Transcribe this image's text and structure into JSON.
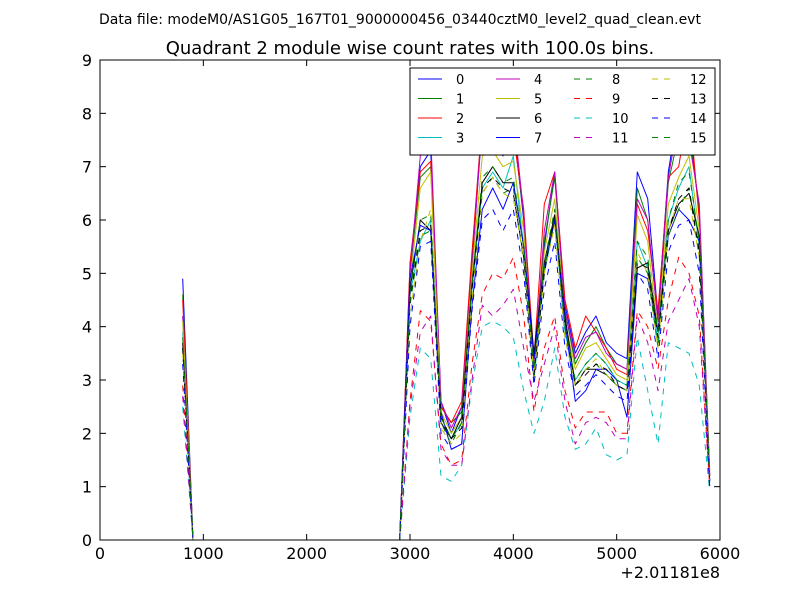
{
  "figure": {
    "suptitle": "Data file: modeM0/AS1G05_167T01_9000000456_03440cztM0_level2_quad_clean.evt"
  },
  "chart_data": {
    "type": "line",
    "title": "Quadrant 2 module wise count rates with 100.0s bins.",
    "xlabel": "",
    "ylabel": "",
    "x_offset_label": "+2.01181e8",
    "xlim": [
      0,
      6000
    ],
    "ylim": [
      0,
      9
    ],
    "xticks": [
      0,
      1000,
      2000,
      3000,
      4000,
      5000,
      6000
    ],
    "yticks": [
      0,
      1,
      2,
      3,
      4,
      5,
      6,
      7,
      8,
      9
    ],
    "grid": false,
    "legend_position": "upper right",
    "legend_columns": 4,
    "x": [
      800,
      900,
      1000,
      1100,
      1200,
      1300,
      1400,
      1500,
      1600,
      1700,
      1800,
      1900,
      2000,
      2100,
      2200,
      2300,
      2400,
      2500,
      2600,
      2700,
      2800,
      2900,
      3000,
      3100,
      3200,
      3300,
      3400,
      3500,
      3600,
      3700,
      3800,
      3900,
      4000,
      4100,
      4200,
      4300,
      4400,
      4500,
      4600,
      4700,
      4800,
      4900,
      5000,
      5100,
      5200,
      5300,
      5400,
      5500,
      5600,
      5700,
      5800,
      5900
    ],
    "series": [
      {
        "name": "0",
        "color": "#0000ff",
        "dash": "solid",
        "values": [
          4.9,
          0.0,
          0,
          0,
          0,
          0,
          0,
          0,
          0,
          0,
          0,
          0,
          0,
          0,
          0,
          0,
          0,
          0,
          0,
          0,
          0,
          0,
          5.1,
          7.0,
          7.3,
          2.6,
          2.0,
          2.5,
          5.2,
          7.8,
          7.8,
          7.2,
          7.8,
          6.0,
          3.0,
          5.5,
          6.9,
          4.4,
          3.5,
          3.9,
          4.2,
          3.7,
          3.5,
          3.4,
          6.9,
          6.4,
          4.2,
          6.9,
          8.1,
          7.9,
          6.1,
          1.1
        ]
      },
      {
        "name": "1",
        "color": "#008000",
        "dash": "solid",
        "values": [
          4.6,
          0.0,
          0,
          0,
          0,
          0,
          0,
          0,
          0,
          0,
          0,
          0,
          0,
          0,
          0,
          0,
          0,
          0,
          0,
          0,
          0,
          0,
          5.0,
          6.8,
          7.0,
          2.5,
          2.2,
          2.4,
          5.3,
          7.9,
          8.6,
          7.6,
          7.7,
          6.1,
          3.2,
          5.6,
          6.8,
          4.3,
          3.3,
          3.7,
          4.0,
          3.6,
          3.3,
          3.2,
          6.6,
          6.0,
          4.1,
          6.7,
          7.6,
          7.7,
          6.2,
          1.3
        ]
      },
      {
        "name": "2",
        "color": "#ff0000",
        "dash": "solid",
        "values": [
          4.5,
          0.0,
          0,
          0,
          0,
          0,
          0,
          0,
          0,
          0,
          0,
          0,
          0,
          0,
          0,
          0,
          0,
          0,
          0,
          0,
          0,
          0,
          5.2,
          6.9,
          7.1,
          2.5,
          2.2,
          2.6,
          5.4,
          7.9,
          8.0,
          7.8,
          7.6,
          6.2,
          3.4,
          6.3,
          6.9,
          4.5,
          3.6,
          4.2,
          3.9,
          3.6,
          3.2,
          3.1,
          6.3,
          5.8,
          4.3,
          6.8,
          7.0,
          8.2,
          6.0,
          1.2
        ]
      },
      {
        "name": "3",
        "color": "#00bfbf",
        "dash": "solid",
        "values": [
          3.9,
          0.0,
          0,
          0,
          0,
          0,
          0,
          0,
          0,
          0,
          0,
          0,
          0,
          0,
          0,
          0,
          0,
          0,
          0,
          0,
          0,
          0,
          4.6,
          5.6,
          6.0,
          2.3,
          1.9,
          2.2,
          4.7,
          6.6,
          6.9,
          6.6,
          7.2,
          5.5,
          3.0,
          5.0,
          6.0,
          3.9,
          3.0,
          3.3,
          3.5,
          3.3,
          3.0,
          2.9,
          5.6,
          5.1,
          3.7,
          6.0,
          6.6,
          7.0,
          5.5,
          1.1
        ]
      },
      {
        "name": "4",
        "color": "#bf00bf",
        "dash": "solid",
        "values": [
          4.2,
          0.0,
          0,
          0,
          0,
          0,
          0,
          0,
          0,
          0,
          0,
          0,
          0,
          0,
          0,
          0,
          0,
          0,
          0,
          0,
          0,
          0,
          5.0,
          7.2,
          7.6,
          2.6,
          2.1,
          2.5,
          5.1,
          7.9,
          8.1,
          7.8,
          8.0,
          6.1,
          3.2,
          5.8,
          6.9,
          4.3,
          3.4,
          3.8,
          3.9,
          3.5,
          3.3,
          3.2,
          6.4,
          6.0,
          4.1,
          6.8,
          7.9,
          7.5,
          6.3,
          1.2
        ]
      },
      {
        "name": "5",
        "color": "#bfbf00",
        "dash": "solid",
        "values": [
          4.1,
          0.0,
          0,
          0,
          0,
          0,
          0,
          0,
          0,
          0,
          0,
          0,
          0,
          0,
          0,
          0,
          0,
          0,
          0,
          0,
          0,
          0,
          4.8,
          6.6,
          6.9,
          2.4,
          2.0,
          2.3,
          5.0,
          7.2,
          7.3,
          7.0,
          7.1,
          5.8,
          3.1,
          5.4,
          6.4,
          4.1,
          3.2,
          3.6,
          3.7,
          3.4,
          3.1,
          3.0,
          6.1,
          5.6,
          3.9,
          6.3,
          6.8,
          7.2,
          5.8,
          1.2
        ]
      },
      {
        "name": "6",
        "color": "#000000",
        "dash": "solid",
        "values": [
          3.7,
          0.0,
          0,
          0,
          0,
          0,
          0,
          0,
          0,
          0,
          0,
          0,
          0,
          0,
          0,
          0,
          0,
          0,
          0,
          0,
          0,
          0,
          4.7,
          6.0,
          5.8,
          2.2,
          1.9,
          2.3,
          4.8,
          6.7,
          7.0,
          6.7,
          6.7,
          5.5,
          3.5,
          5.2,
          6.1,
          4.2,
          2.9,
          3.2,
          3.2,
          3.1,
          2.9,
          2.8,
          5.1,
          5.2,
          3.9,
          5.8,
          6.3,
          6.5,
          5.7,
          1.1
        ]
      },
      {
        "name": "7",
        "color": "#0000ff",
        "dash": "solid",
        "values": [
          3.6,
          0.0,
          0,
          0,
          0,
          0,
          0,
          0,
          0,
          0,
          0,
          0,
          0,
          0,
          0,
          0,
          0,
          0,
          0,
          0,
          0,
          0,
          4.9,
          5.9,
          5.8,
          2.4,
          1.7,
          1.8,
          4.4,
          6.2,
          6.6,
          6.2,
          6.7,
          5.5,
          3.4,
          5.1,
          6.0,
          4.1,
          2.6,
          2.8,
          3.2,
          3.2,
          3.0,
          2.3,
          5.0,
          4.9,
          3.9,
          5.7,
          6.2,
          6.0,
          5.6,
          1.1
        ]
      },
      {
        "name": "8",
        "color": "#008000",
        "dash": "dashed",
        "values": [
          3.6,
          0.0,
          0,
          0,
          0,
          0,
          0,
          0,
          0,
          0,
          0,
          0,
          0,
          0,
          0,
          0,
          0,
          0,
          0,
          0,
          0,
          0,
          4.4,
          5.7,
          5.8,
          2.2,
          1.8,
          2.2,
          4.7,
          6.5,
          6.8,
          6.5,
          6.6,
          5.2,
          3.0,
          5.1,
          5.9,
          3.8,
          2.9,
          3.2,
          3.3,
          3.1,
          2.9,
          2.8,
          5.3,
          5.0,
          3.6,
          5.7,
          6.2,
          6.6,
          5.3,
          1.1
        ]
      },
      {
        "name": "9",
        "color": "#ff0000",
        "dash": "dashed",
        "values": [
          2.9,
          0.0,
          0,
          0,
          0,
          0,
          0,
          0,
          0,
          0,
          0,
          0,
          0,
          0,
          0,
          0,
          0,
          0,
          0,
          0,
          0,
          0,
          2.6,
          4.3,
          4.1,
          1.8,
          1.4,
          1.5,
          3.3,
          4.6,
          5.0,
          4.9,
          5.3,
          4.2,
          2.4,
          3.6,
          4.2,
          2.8,
          2.1,
          2.4,
          2.4,
          2.4,
          2.0,
          2.0,
          4.3,
          4.0,
          3.2,
          4.5,
          5.3,
          5.0,
          4.2,
          1.0
        ]
      },
      {
        "name": "10",
        "color": "#00bfbf",
        "dash": "dashed",
        "values": [
          2.5,
          0.0,
          0,
          0,
          0,
          0,
          0,
          0,
          0,
          0,
          0,
          0,
          0,
          0,
          0,
          0,
          0,
          0,
          0,
          0,
          0,
          0,
          2.3,
          3.6,
          3.4,
          1.2,
          1.1,
          1.4,
          2.9,
          4.0,
          4.1,
          4.0,
          3.8,
          2.8,
          2.0,
          2.6,
          3.6,
          2.3,
          1.7,
          1.8,
          2.1,
          1.6,
          1.5,
          1.6,
          3.8,
          2.8,
          1.8,
          3.7,
          3.6,
          3.5,
          2.9,
          0.9
        ]
      },
      {
        "name": "11",
        "color": "#bf00bf",
        "dash": "dashed",
        "values": [
          2.7,
          0.0,
          0,
          0,
          0,
          0,
          0,
          0,
          0,
          0,
          0,
          0,
          0,
          0,
          0,
          0,
          0,
          0,
          0,
          0,
          0,
          0,
          2.5,
          3.9,
          4.2,
          1.7,
          1.4,
          1.4,
          3.0,
          4.4,
          4.2,
          4.4,
          4.7,
          3.6,
          2.6,
          3.3,
          4.0,
          2.6,
          1.8,
          2.2,
          2.3,
          2.2,
          1.9,
          1.9,
          4.2,
          3.7,
          2.8,
          4.1,
          4.5,
          4.9,
          4.0,
          1.0
        ]
      },
      {
        "name": "12",
        "color": "#bfbf00",
        "dash": "dashed",
        "values": [
          3.5,
          0.0,
          0,
          0,
          0,
          0,
          0,
          0,
          0,
          0,
          0,
          0,
          0,
          0,
          0,
          0,
          0,
          0,
          0,
          0,
          0,
          0,
          4.2,
          5.6,
          6.2,
          2.1,
          1.8,
          2.0,
          4.5,
          6.5,
          6.8,
          6.5,
          6.4,
          5.3,
          3.0,
          5.0,
          5.9,
          3.8,
          2.9,
          3.2,
          3.4,
          3.1,
          2.9,
          2.8,
          5.4,
          5.0,
          3.6,
          5.8,
          6.4,
          6.4,
          5.3,
          1.1
        ]
      },
      {
        "name": "13",
        "color": "#000000",
        "dash": "dashed",
        "values": [
          3.6,
          0.0,
          0,
          0,
          0,
          0,
          0,
          0,
          0,
          0,
          0,
          0,
          0,
          0,
          0,
          0,
          0,
          0,
          0,
          0,
          0,
          0,
          4.5,
          5.8,
          5.9,
          2.3,
          1.9,
          2.1,
          4.7,
          6.6,
          6.8,
          6.6,
          6.5,
          5.3,
          3.1,
          5.0,
          6.1,
          4.0,
          2.9,
          3.1,
          3.3,
          3.2,
          2.9,
          2.8,
          5.2,
          5.1,
          3.8,
          5.8,
          6.4,
          6.6,
          5.4,
          1.1
        ]
      },
      {
        "name": "14",
        "color": "#0000ff",
        "dash": "dashed",
        "values": [
          3.3,
          0.0,
          0,
          0,
          0,
          0,
          0,
          0,
          0,
          0,
          0,
          0,
          0,
          0,
          0,
          0,
          0,
          0,
          0,
          0,
          0,
          0,
          4.0,
          5.5,
          5.6,
          2.0,
          1.7,
          1.8,
          4.3,
          6.0,
          6.2,
          5.8,
          6.2,
          5.0,
          2.9,
          4.7,
          5.6,
          3.6,
          2.7,
          2.9,
          3.1,
          2.9,
          2.7,
          2.6,
          5.0,
          4.7,
          3.4,
          5.4,
          5.9,
          6.0,
          5.0,
          1.0
        ]
      },
      {
        "name": "15",
        "color": "#008000",
        "dash": "dashed",
        "values": [
          3.8,
          0.0,
          0,
          0,
          0,
          0,
          0,
          0,
          0,
          0,
          0,
          0,
          0,
          0,
          0,
          0,
          0,
          0,
          0,
          0,
          0,
          0,
          4.6,
          6.0,
          6.1,
          2.3,
          1.9,
          2.2,
          4.8,
          6.8,
          7.0,
          6.7,
          6.8,
          5.5,
          3.2,
          5.2,
          6.2,
          4.0,
          3.0,
          3.3,
          3.5,
          3.3,
          3.0,
          2.9,
          5.6,
          5.3,
          3.9,
          6.0,
          6.7,
          6.9,
          5.6,
          1.2
        ]
      }
    ]
  }
}
